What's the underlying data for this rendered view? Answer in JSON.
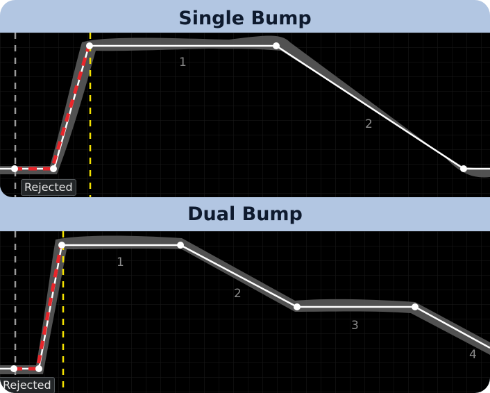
{
  "colors": {
    "background": "#b2c6e2",
    "plot_background": "#000000",
    "grid": "#1b1b1b",
    "envelope": "#5a5a5a",
    "curve": "#ffffff",
    "rejected_path": "#e8262b",
    "rejected_path_overlay": "#ffffff",
    "marker_left": "#9a9a9a",
    "marker_right": "#f2e000",
    "title_text": "#0e1a2e",
    "segment_label": "#8c8c8c"
  },
  "panels": [
    {
      "id": "single-bump",
      "title": "Single Bump",
      "rejected_label": "Rejected",
      "segment_labels": [
        "1",
        "2"
      ]
    },
    {
      "id": "dual-bump",
      "title": "Dual Bump",
      "rejected_label": "Rejected",
      "segment_labels": [
        "1",
        "2",
        "3",
        "4"
      ]
    }
  ]
}
